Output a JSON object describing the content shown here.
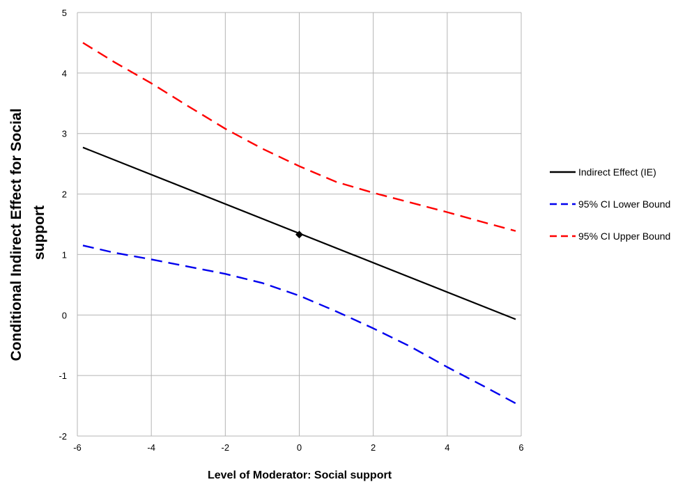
{
  "chart_data": {
    "type": "line",
    "title": "",
    "xlabel": "Level of Moderator:  Social support",
    "ylabel_lines": [
      "Conditional Indirect Effect for  Social",
      "support"
    ],
    "xlim": [
      -6,
      6
    ],
    "ylim": [
      -2,
      5
    ],
    "xticks": [
      -6,
      -4,
      -2,
      0,
      2,
      4,
      6
    ],
    "yticks": [
      -2,
      -1,
      0,
      1,
      2,
      3,
      4,
      5
    ],
    "grid": true,
    "legend_position": "right",
    "series": [
      {
        "name": "Indirect Effect (IE)",
        "color": "#000000",
        "dash": "solid",
        "x": [
          -5.85,
          5.85
        ],
        "y": [
          2.77,
          -0.07
        ]
      },
      {
        "name": "95% CI Lower Bound",
        "color": "#0000ee",
        "dash": "dashed",
        "x": [
          -5.85,
          -5,
          -4,
          -3,
          -2,
          -1,
          0,
          1,
          2,
          3,
          4,
          5,
          5.85
        ],
        "y": [
          1.15,
          1.03,
          0.92,
          0.8,
          0.68,
          0.53,
          0.32,
          0.06,
          -0.22,
          -0.52,
          -0.86,
          -1.18,
          -1.46
        ]
      },
      {
        "name": "95% CI Upper Bound",
        "color": "#ff0000",
        "dash": "dashed",
        "x": [
          -5.85,
          -5,
          -4,
          -3,
          -2,
          -1,
          0,
          1,
          2,
          3,
          4,
          5,
          5.85
        ],
        "y": [
          4.5,
          4.18,
          3.83,
          3.45,
          3.08,
          2.75,
          2.46,
          2.2,
          2.02,
          1.86,
          1.7,
          1.53,
          1.39
        ]
      }
    ],
    "markers": [
      {
        "x": 0,
        "y": 1.33,
        "shape": "diamond",
        "color": "#000000"
      }
    ]
  }
}
